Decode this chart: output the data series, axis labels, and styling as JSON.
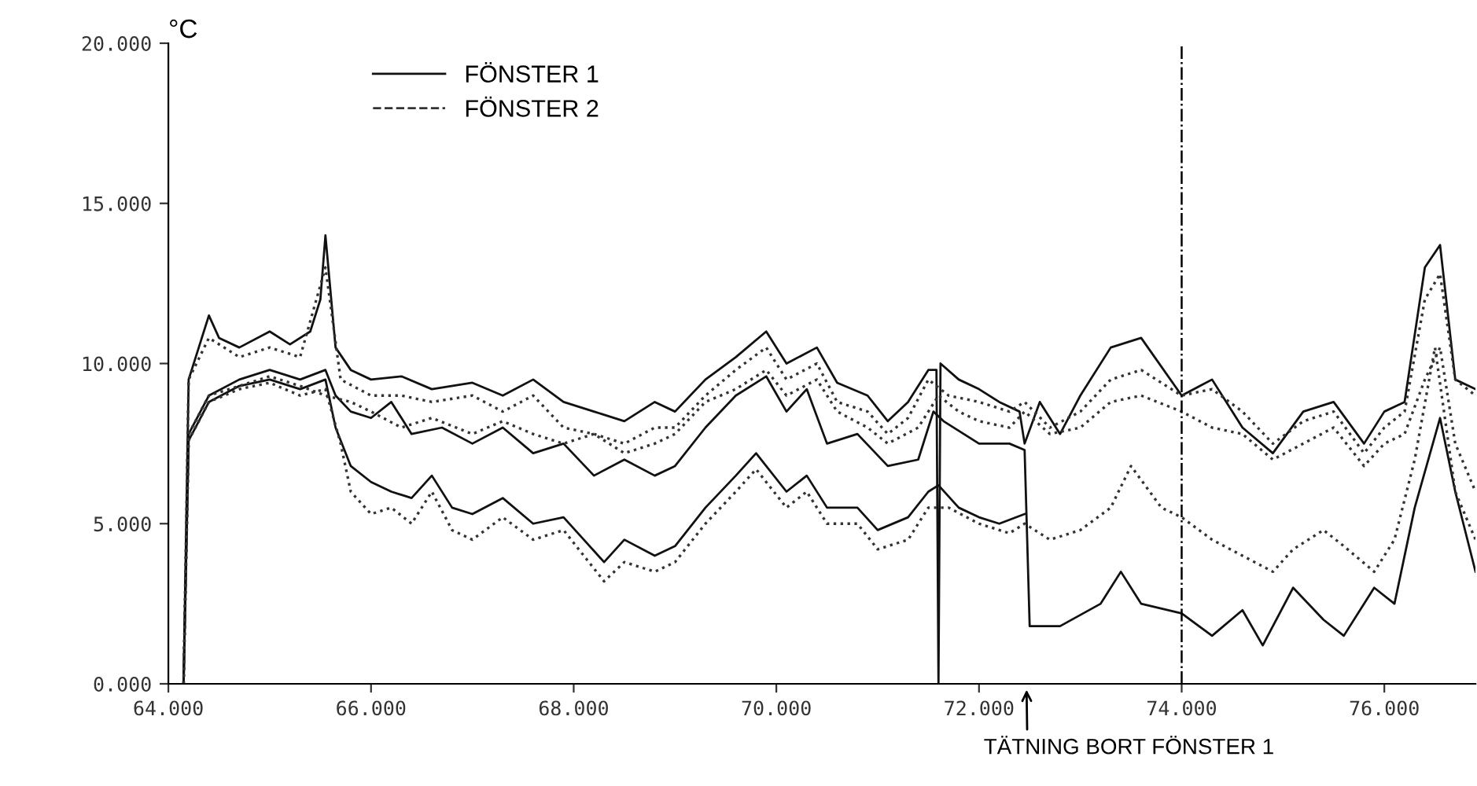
{
  "chart_data": {
    "type": "line",
    "ylabel": "°C",
    "xlim": [
      64,
      76.9
    ],
    "ylim": [
      0,
      20
    ],
    "xticks": [
      {
        "value": 64,
        "label": "64.000"
      },
      {
        "value": 66,
        "label": "66.000"
      },
      {
        "value": 68,
        "label": "68.000"
      },
      {
        "value": 70,
        "label": "70.000"
      },
      {
        "value": 72,
        "label": "72.000"
      },
      {
        "value": 74,
        "label": "74.000"
      },
      {
        "value": 76,
        "label": "76.000"
      }
    ],
    "yticks": [
      {
        "value": 0,
        "label": "0.000"
      },
      {
        "value": 5,
        "label": "5.000"
      },
      {
        "value": 10,
        "label": "10.000"
      },
      {
        "value": 15,
        "label": "15.000"
      },
      {
        "value": 20,
        "label": "20.000"
      }
    ],
    "grid": false,
    "legend": "top left",
    "marker": "none",
    "ref_lines": [
      {
        "axis": "x",
        "value": 74,
        "line_style": "dashdot",
        "color": "#000000"
      }
    ],
    "annotations": [
      "TÄTNING BORT FÖNSTER 1"
    ],
    "series": [
      {
        "name": "FÖNSTER 1",
        "color": "#111111",
        "line_style": "solid",
        "x": [
          64.15,
          64.2,
          64.3,
          64.4,
          64.5,
          64.7,
          65.0,
          65.2,
          65.4,
          65.5,
          65.55,
          65.65,
          65.8,
          66.0,
          66.3,
          66.6,
          67.0,
          67.3,
          67.6,
          67.9,
          68.2,
          68.5,
          68.8,
          69.0,
          69.3,
          69.6,
          69.9,
          70.1,
          70.4,
          70.6,
          70.9,
          71.1,
          71.3,
          71.5,
          71.58,
          71.6,
          71.62,
          71.8,
          72.0,
          72.2,
          72.4,
          72.45,
          72.6,
          72.8,
          73.0,
          73.3,
          73.6,
          74.0,
          74.3,
          74.6,
          74.9,
          75.2,
          75.5,
          75.8,
          76.0,
          76.2,
          76.4,
          76.55,
          76.7,
          76.9
        ],
        "values": [
          0,
          9.5,
          10.5,
          11.5,
          10.8,
          10.5,
          11.0,
          10.6,
          11.0,
          12.0,
          14.0,
          10.5,
          9.8,
          9.5,
          9.6,
          9.2,
          9.4,
          9.0,
          9.5,
          8.8,
          8.5,
          8.2,
          8.8,
          8.5,
          9.5,
          10.2,
          11.0,
          10.0,
          10.5,
          9.4,
          9.0,
          8.2,
          8.8,
          9.8,
          9.8,
          0,
          10.0,
          9.5,
          9.2,
          8.8,
          8.5,
          7.5,
          8.8,
          7.8,
          9.0,
          10.5,
          10.8,
          9.0,
          9.5,
          8.0,
          7.2,
          8.5,
          8.8,
          7.5,
          8.5,
          8.8,
          13.0,
          13.7,
          9.5,
          9.2
        ]
      },
      {
        "color": "#111111",
        "line_style": "solid",
        "x": [
          64.15,
          64.2,
          64.4,
          64.7,
          65.0,
          65.3,
          65.55,
          65.65,
          65.8,
          66.0,
          66.2,
          66.4,
          66.7,
          67.0,
          67.3,
          67.6,
          67.9,
          68.2,
          68.5,
          68.8,
          69.0,
          69.3,
          69.6,
          69.9,
          70.1,
          70.3,
          70.5,
          70.8,
          71.1,
          71.4,
          71.55,
          71.65,
          72.0,
          72.3,
          72.45,
          72.5,
          72.8,
          73.2,
          73.4,
          73.6,
          74.0,
          74.3,
          74.6,
          74.8,
          75.1,
          75.4,
          75.6,
          75.9,
          76.1,
          76.3,
          76.55,
          76.7,
          76.9
        ],
        "values": [
          0,
          7.8,
          9.0,
          9.5,
          9.8,
          9.5,
          9.8,
          9.0,
          8.5,
          8.3,
          8.8,
          7.8,
          8.0,
          7.5,
          8.0,
          7.2,
          7.5,
          6.5,
          7.0,
          6.5,
          6.8,
          8.0,
          9.0,
          9.6,
          8.5,
          9.2,
          7.5,
          7.8,
          6.8,
          7.0,
          8.5,
          8.2,
          7.5,
          7.5,
          7.3,
          1.8,
          1.8,
          2.5,
          3.5,
          2.5,
          2.2,
          1.5,
          2.3,
          1.2,
          3.0,
          2.0,
          1.5,
          3.0,
          2.5,
          5.5,
          8.3,
          6.0,
          3.5
        ]
      },
      {
        "color": "#111111",
        "line_style": "solid",
        "x": [
          64.15,
          64.2,
          64.4,
          64.7,
          65.0,
          65.3,
          65.55,
          65.65,
          65.8,
          66.0,
          66.2,
          66.4,
          66.6,
          66.8,
          67.0,
          67.3,
          67.6,
          67.9,
          68.1,
          68.3,
          68.5,
          68.8,
          69.0,
          69.3,
          69.6,
          69.8,
          70.1,
          70.3,
          70.5,
          70.8,
          71.0,
          71.3,
          71.5,
          71.6,
          71.8,
          72.0,
          72.2,
          72.45
        ],
        "values": [
          0,
          7.6,
          8.8,
          9.3,
          9.5,
          9.2,
          9.5,
          8.0,
          6.8,
          6.3,
          6.0,
          5.8,
          6.5,
          5.5,
          5.3,
          5.8,
          5.0,
          5.2,
          4.5,
          3.8,
          4.5,
          4.0,
          4.3,
          5.5,
          6.5,
          7.2,
          6.0,
          6.5,
          5.5,
          5.5,
          4.8,
          5.2,
          6.0,
          6.2,
          5.5,
          5.2,
          5.0,
          5.3
        ]
      },
      {
        "name": "FÖNSTER 2",
        "color": "#333333",
        "line_style": "dotted",
        "x": [
          64.15,
          64.2,
          64.4,
          64.7,
          65.0,
          65.3,
          65.55,
          65.7,
          66.0,
          66.3,
          66.6,
          67.0,
          67.3,
          67.6,
          67.9,
          68.2,
          68.5,
          68.8,
          69.0,
          69.3,
          69.6,
          69.9,
          70.1,
          70.4,
          70.6,
          70.9,
          71.1,
          71.3,
          71.5,
          71.7,
          72.0,
          72.3,
          72.45,
          72.7,
          73.0,
          73.3,
          73.6,
          74.0,
          74.3,
          74.6,
          74.9,
          75.2,
          75.5,
          75.8,
          76.0,
          76.2,
          76.4,
          76.55,
          76.7,
          76.9
        ],
        "values": [
          0,
          9.5,
          10.8,
          10.2,
          10.5,
          10.2,
          13.0,
          9.5,
          9.0,
          9.0,
          8.8,
          9.0,
          8.5,
          9.0,
          8.0,
          7.8,
          7.5,
          8.0,
          8.0,
          9.0,
          9.8,
          10.5,
          9.5,
          10.0,
          8.8,
          8.5,
          7.8,
          8.3,
          9.5,
          9.0,
          8.8,
          8.5,
          8.8,
          8.0,
          8.5,
          9.5,
          9.8,
          9.0,
          9.2,
          8.5,
          7.5,
          8.2,
          8.5,
          7.2,
          8.0,
          8.5,
          12.0,
          12.8,
          9.5,
          9.0
        ]
      },
      {
        "color": "#333333",
        "line_style": "dotted",
        "x": [
          64.15,
          64.2,
          64.4,
          64.7,
          65.0,
          65.3,
          65.55,
          65.8,
          66.0,
          66.3,
          66.6,
          67.0,
          67.3,
          67.6,
          67.9,
          68.2,
          68.5,
          68.8,
          69.0,
          69.3,
          69.6,
          69.9,
          70.1,
          70.4,
          70.6,
          70.9,
          71.1,
          71.4,
          71.6,
          71.8,
          72.0,
          72.3,
          72.45,
          72.7,
          73.0,
          73.3,
          73.6,
          74.0,
          74.3,
          74.6,
          74.9,
          75.2,
          75.5,
          75.8,
          76.0,
          76.2,
          76.4,
          76.55,
          76.7,
          76.9
        ],
        "values": [
          0,
          7.8,
          9.0,
          9.3,
          9.6,
          9.3,
          9.0,
          8.8,
          8.5,
          8.0,
          8.3,
          7.8,
          8.2,
          7.8,
          7.5,
          7.8,
          7.2,
          7.5,
          7.8,
          8.8,
          9.2,
          9.8,
          9.0,
          9.5,
          8.5,
          8.0,
          7.5,
          8.0,
          9.0,
          8.5,
          8.2,
          8.0,
          8.5,
          7.8,
          8.0,
          8.8,
          9.0,
          8.5,
          8.0,
          7.8,
          7.0,
          7.5,
          8.0,
          6.8,
          7.5,
          7.8,
          9.5,
          10.5,
          7.5,
          6.0
        ]
      },
      {
        "color": "#333333",
        "line_style": "dotted",
        "x": [
          64.15,
          64.2,
          64.4,
          64.7,
          65.0,
          65.3,
          65.55,
          65.7,
          65.8,
          66.0,
          66.2,
          66.4,
          66.6,
          66.8,
          67.0,
          67.3,
          67.6,
          67.9,
          68.1,
          68.3,
          68.5,
          68.8,
          69.0,
          69.3,
          69.6,
          69.8,
          70.1,
          70.3,
          70.5,
          70.8,
          71.0,
          71.3,
          71.5,
          71.7,
          72.0,
          72.3,
          72.45,
          72.7,
          73.0,
          73.3,
          73.5,
          73.8,
          74.0,
          74.3,
          74.6,
          74.9,
          75.1,
          75.4,
          75.6,
          75.9,
          76.1,
          76.3,
          76.5,
          76.7,
          76.9
        ],
        "values": [
          0,
          7.6,
          8.8,
          9.2,
          9.4,
          9.0,
          9.2,
          7.5,
          6.0,
          5.3,
          5.5,
          5.0,
          6.0,
          4.8,
          4.5,
          5.2,
          4.5,
          4.8,
          4.0,
          3.2,
          3.8,
          3.5,
          3.8,
          5.0,
          6.0,
          6.7,
          5.5,
          6.0,
          5.0,
          5.0,
          4.2,
          4.5,
          5.5,
          5.5,
          5.0,
          4.7,
          5.0,
          4.5,
          4.8,
          5.5,
          6.8,
          5.5,
          5.2,
          4.5,
          4.0,
          3.5,
          4.2,
          4.8,
          4.3,
          3.5,
          4.5,
          7.0,
          10.5,
          6.0,
          4.5
        ]
      }
    ]
  }
}
